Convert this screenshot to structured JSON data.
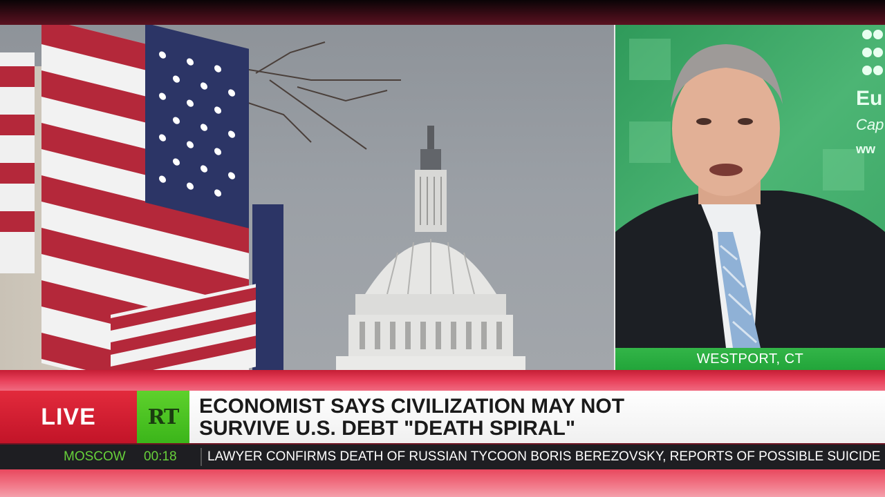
{
  "location": "WESTPORT, CT",
  "lower_third": {
    "live_label": "LIVE",
    "logo_text": "RT",
    "headline_line1": "ECONOMIST SAYS CIVILIZATION MAY NOT",
    "headline_line2": "SURVIVE U.S. DEBT \"DEATH SPIRAL\""
  },
  "ticker": {
    "city": "MOSCOW",
    "time": "00:18",
    "text": "LAWYER CONFIRMS DEATH OF RUSSIAN TYCOON BORIS BEREZOVSKY, REPORTS OF POSSIBLE SUICIDE"
  },
  "backdrop_text": {
    "line1": "Eu",
    "line2": "Cap",
    "line3": "ww"
  },
  "colors": {
    "live_red": "#d11f33",
    "rt_green": "#4cc423",
    "location_green": "#2aad40",
    "ticker_green": "#67d13a"
  }
}
